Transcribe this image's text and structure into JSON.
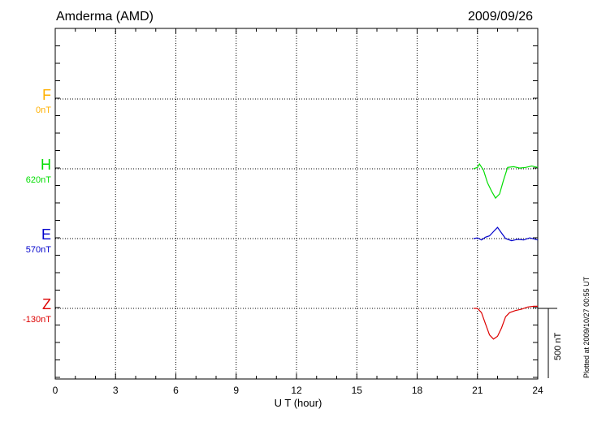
{
  "header": {
    "station": "Amderma (AMD)",
    "date": "2009/09/26"
  },
  "footer": {
    "plotted_at": "Plotted at 2009/10/27 00:55 UT"
  },
  "components": [
    {
      "key": "F",
      "base": "0nT",
      "color": "#ffb000"
    },
    {
      "key": "H",
      "base": "620nT",
      "color": "#00dd00"
    },
    {
      "key": "E",
      "base": "570nT",
      "color": "#0000cc"
    },
    {
      "key": "Z",
      "base": "-130nT",
      "color": "#dd0000"
    }
  ],
  "chart_data": {
    "type": "line",
    "title": "Amderma (AMD) 2009/09/26",
    "xlabel": "U T (hour)",
    "xlim": [
      0,
      24
    ],
    "x_ticks": [
      "0",
      "3",
      "6",
      "9",
      "12",
      "15",
      "18",
      "21",
      "24"
    ],
    "grid": true,
    "scale_bar": {
      "value": 500,
      "label": "500 nT"
    },
    "series": [
      {
        "name": "F",
        "base": "0nT",
        "x": [],
        "values": []
      },
      {
        "name": "H",
        "base": "620nT",
        "x": [
          20.8,
          21.0,
          21.1,
          21.3,
          21.5,
          21.7,
          21.9,
          22.1,
          22.3,
          22.5,
          22.8,
          23.1,
          23.4,
          23.7,
          24.0
        ],
        "values": [
          0,
          10,
          35,
          -10,
          -100,
          -160,
          -210,
          -180,
          -80,
          10,
          15,
          5,
          10,
          20,
          10
        ]
      },
      {
        "name": "E",
        "base": "570nT",
        "x": [
          20.8,
          21.0,
          21.2,
          21.4,
          21.6,
          21.8,
          22.0,
          22.2,
          22.4,
          22.7,
          23.0,
          23.3,
          23.6,
          24.0
        ],
        "values": [
          0,
          5,
          -10,
          10,
          20,
          50,
          80,
          40,
          0,
          -15,
          -5,
          -10,
          5,
          -10
        ]
      },
      {
        "name": "Z",
        "base": "-130nT",
        "x": [
          20.8,
          21.0,
          21.2,
          21.4,
          21.6,
          21.8,
          22.0,
          22.2,
          22.4,
          22.6,
          22.9,
          23.2,
          23.5,
          23.8,
          24.0
        ],
        "values": [
          0,
          0,
          -30,
          -110,
          -190,
          -220,
          -200,
          -140,
          -60,
          -30,
          -15,
          -5,
          10,
          15,
          15
        ]
      }
    ]
  }
}
